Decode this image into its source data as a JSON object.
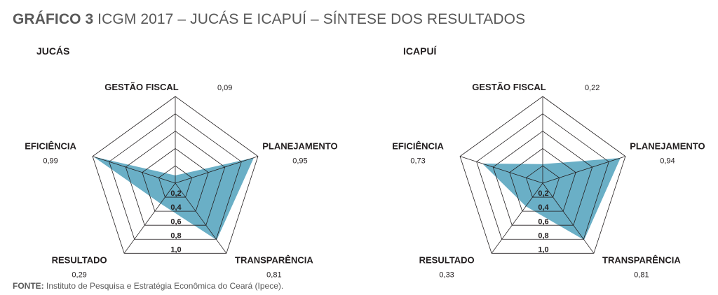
{
  "header": {
    "title_bold": "GRÁFICO 3",
    "title_rest": " ICGM 2017 – JUCÁS E ICAPUÍ – SÍNTESE DOS RESULTADOS"
  },
  "footer": {
    "source_bold": "FONTE:",
    "source_text": " Instituto de Pesquisa e Estratégia Econômica do Ceará (Ipece)."
  },
  "colors": {
    "fill": "#6aafc6",
    "grid": "#231f20"
  },
  "chart_data": [
    {
      "type": "radar",
      "title": "JUCÁS",
      "axes": [
        "GESTÃO FISCAL",
        "PLANEJAMENTO",
        "TRANSPARÊNCIA",
        "RESULTADO",
        "EFICIÊNCIA"
      ],
      "values": [
        0.09,
        0.95,
        0.81,
        0.29,
        0.99
      ],
      "value_labels": [
        "0,09",
        "0,95",
        "0,81",
        "0,29",
        "0,99"
      ],
      "rings": [
        0.2,
        0.4,
        0.6,
        0.8,
        1.0
      ],
      "ring_labels": [
        "0,2",
        "0,4",
        "0,6",
        "0,8",
        "1,0"
      ],
      "range": [
        0,
        1
      ]
    },
    {
      "type": "radar",
      "title": "ICAPUÍ",
      "axes": [
        "GESTÃO FISCAL",
        "PLANEJAMENTO",
        "TRANSPARÊNCIA",
        "RESULTADO",
        "EFICIÊNCIA"
      ],
      "values": [
        0.22,
        0.94,
        0.81,
        0.33,
        0.73
      ],
      "value_labels": [
        "0,22",
        "0,94",
        "0,81",
        "0,33",
        "0,73"
      ],
      "rings": [
        0.2,
        0.4,
        0.6,
        0.8,
        1.0
      ],
      "ring_labels": [
        "0,2",
        "0,4",
        "0,6",
        "0,8",
        "1,0"
      ],
      "range": [
        0,
        1
      ]
    }
  ]
}
